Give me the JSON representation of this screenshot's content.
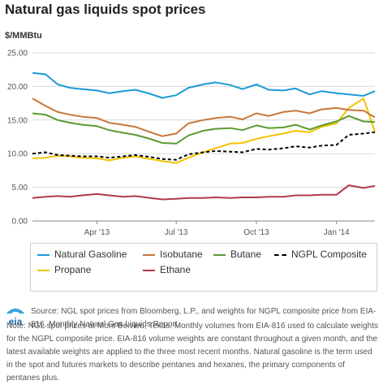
{
  "header": {
    "title": "Natural gas liquids spot prices",
    "unit": "$/MMBtu"
  },
  "colors": {
    "natural_gasoline": "#1a9bd6",
    "isobutane": "#c8763a",
    "butane": "#5c9a32",
    "ngpl_composite": "#000000",
    "propane": "#f2c200",
    "ethane": "#b03a48",
    "grid": "#d9d9d9",
    "axis": "#888888"
  },
  "legend": {
    "items": [
      {
        "key": "natural_gasoline",
        "label": "Natural Gasoline",
        "style": "solid"
      },
      {
        "key": "isobutane",
        "label": "Isobutane",
        "style": "solid"
      },
      {
        "key": "butane",
        "label": "Butane",
        "style": "solid"
      },
      {
        "key": "ngpl_composite",
        "label": "NGPL Composite",
        "style": "dashed"
      },
      {
        "key": "propane",
        "label": "Propane",
        "style": "solid"
      },
      {
        "key": "ethane",
        "label": "Ethane",
        "style": "solid"
      }
    ]
  },
  "footer": {
    "logo_text": "eia",
    "source": "Source: NGL spot prices from Bloomberg, L.P., and weights for NGPL composite price from EIA-816, Monthly Natural Gas Liquids Report.",
    "note": "Note: NGL spot prices at Mont Belvieu, Texas. Monthly volumes from EIA-816 used to calculate weights for the NGPL composite price. EIA-816 volume weights are constant throughout a given month, and the latest available weights are applied to the three most recent months. Natural gasoline is the term used in the spot and futures markets to describe pentanes and hexanes, the primary components of pentanes plus."
  },
  "chart_data": {
    "type": "line",
    "title": "Natural gas liquids spot prices",
    "ylabel": "$/MMBtu",
    "xlabel": "",
    "ylim": [
      0,
      25
    ],
    "xlim": [
      "2013-01-17",
      "2014-02-14"
    ],
    "yticks": [
      "0.00",
      "5.00",
      "10.00",
      "15.00",
      "20.00",
      "25.00"
    ],
    "xticks": [
      {
        "label": "Apr '13",
        "date": "2013-04-01"
      },
      {
        "label": "Jul '13",
        "date": "2013-07-01"
      },
      {
        "label": "Oct '13",
        "date": "2013-10-01"
      },
      {
        "label": "Jan '14",
        "date": "2014-01-01"
      }
    ],
    "grid": true,
    "legend_position": "bottom",
    "x": [
      "2013-01-17",
      "2013-02-01",
      "2013-02-15",
      "2013-03-01",
      "2013-03-15",
      "2013-04-01",
      "2013-04-15",
      "2013-05-01",
      "2013-05-15",
      "2013-06-01",
      "2013-06-15",
      "2013-07-01",
      "2013-07-15",
      "2013-08-01",
      "2013-08-15",
      "2013-09-01",
      "2013-09-15",
      "2013-10-01",
      "2013-10-15",
      "2013-11-01",
      "2013-11-15",
      "2013-12-01",
      "2013-12-15",
      "2014-01-01",
      "2014-01-15",
      "2014-02-01",
      "2014-02-14"
    ],
    "series": [
      {
        "name": "Natural Gasoline",
        "key": "natural_gasoline",
        "values": [
          22.0,
          21.8,
          20.3,
          19.8,
          19.6,
          19.4,
          19.0,
          19.3,
          19.5,
          18.9,
          18.3,
          18.7,
          19.8,
          20.3,
          20.6,
          20.2,
          19.6,
          20.3,
          19.5,
          19.4,
          19.7,
          18.8,
          19.3,
          19.0,
          18.8,
          18.6,
          19.3
        ]
      },
      {
        "name": "Isobutane",
        "key": "isobutane",
        "values": [
          18.2,
          17.1,
          16.2,
          15.8,
          15.5,
          15.3,
          14.6,
          14.3,
          14.0,
          13.2,
          12.6,
          13.0,
          14.5,
          15.0,
          15.3,
          15.5,
          15.1,
          16.0,
          15.6,
          16.2,
          16.4,
          16.0,
          16.6,
          16.8,
          16.5,
          16.4,
          15.4
        ]
      },
      {
        "name": "Butane",
        "key": "butane",
        "values": [
          16.0,
          15.8,
          15.0,
          14.6,
          14.3,
          14.1,
          13.5,
          13.1,
          12.8,
          12.2,
          11.6,
          11.5,
          12.7,
          13.4,
          13.7,
          13.8,
          13.5,
          14.2,
          13.8,
          13.9,
          14.3,
          13.6,
          14.2,
          14.8,
          15.6,
          14.8,
          14.7
        ]
      },
      {
        "name": "NGPL Composite",
        "key": "ngpl_composite",
        "values": [
          10.0,
          10.2,
          9.8,
          9.7,
          9.6,
          9.6,
          9.4,
          9.6,
          9.8,
          9.5,
          9.2,
          9.1,
          9.9,
          10.2,
          10.4,
          10.3,
          10.2,
          10.7,
          10.6,
          10.8,
          11.1,
          10.9,
          11.2,
          11.3,
          12.8,
          13.0,
          13.2
        ]
      },
      {
        "name": "Propane",
        "key": "propane",
        "values": [
          9.3,
          9.4,
          9.7,
          9.6,
          9.4,
          9.3,
          9.0,
          9.4,
          9.6,
          9.2,
          8.9,
          8.6,
          9.4,
          10.2,
          10.8,
          11.5,
          11.6,
          12.2,
          12.6,
          13.0,
          13.4,
          13.2,
          14.0,
          14.5,
          16.8,
          18.2,
          13.3
        ]
      },
      {
        "name": "Ethane",
        "key": "ethane",
        "values": [
          3.4,
          3.6,
          3.7,
          3.6,
          3.8,
          4.0,
          3.8,
          3.6,
          3.7,
          3.4,
          3.2,
          3.3,
          3.4,
          3.4,
          3.5,
          3.4,
          3.5,
          3.5,
          3.6,
          3.6,
          3.8,
          3.8,
          3.9,
          3.9,
          5.3,
          4.9,
          5.2
        ]
      }
    ]
  }
}
